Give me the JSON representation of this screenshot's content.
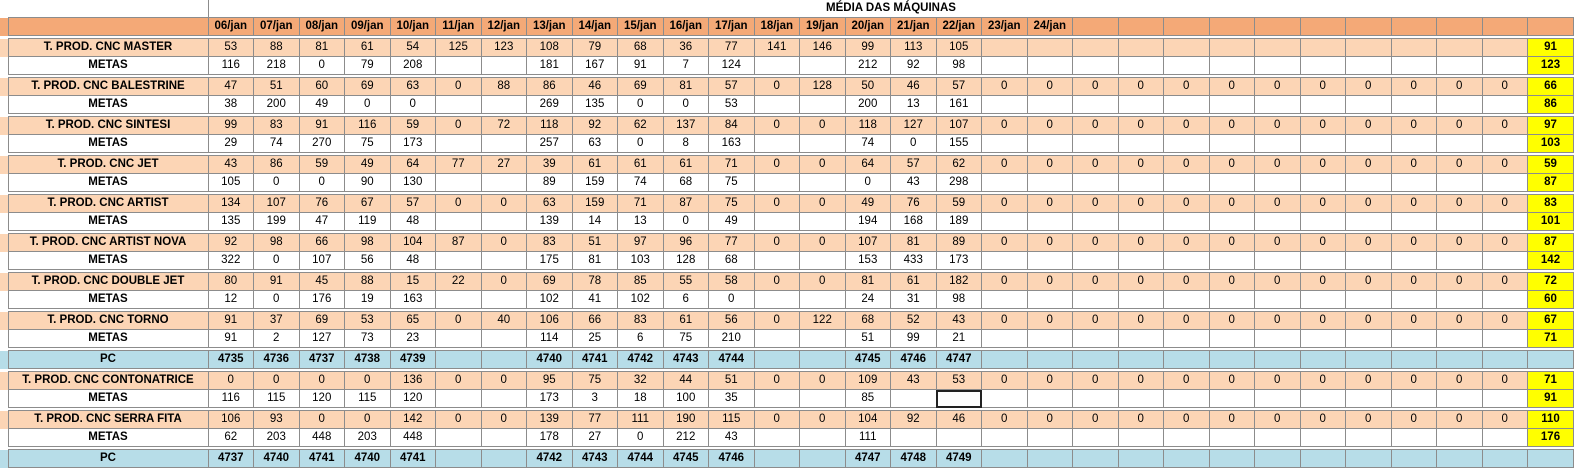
{
  "title": "MÉDIA DAS MÁQUINAS",
  "dates": [
    "06/jan",
    "07/jan",
    "08/jan",
    "09/jan",
    "10/jan",
    "11/jan",
    "12/jan",
    "13/jan",
    "14/jan",
    "15/jan",
    "16/jan",
    "17/jan",
    "18/jan",
    "19/jan",
    "20/jan",
    "21/jan",
    "22/jan",
    "23/jan",
    "24/jan"
  ],
  "blank_columns": 10,
  "groups": [
    {
      "machines": [
        {
          "name": "T. PROD. CNC MASTER",
          "prod": [
            "53",
            "88",
            "81",
            "61",
            "54",
            "125",
            "123",
            "108",
            "79",
            "68",
            "36",
            "77",
            "141",
            "146",
            "99",
            "113",
            "105",
            "",
            "",
            "",
            "",
            "",
            "",
            "",
            "",
            "",
            "",
            "",
            ""
          ],
          "prod_avg": "91",
          "meta_label": "METAS",
          "meta": [
            "116",
            "218",
            "0",
            "79",
            "208",
            "",
            "",
            "181",
            "167",
            "91",
            "7",
            "124",
            "",
            "",
            "212",
            "92",
            "98",
            "",
            "",
            "",
            "",
            "",
            "",
            "",
            "",
            "",
            "",
            "",
            ""
          ],
          "meta_avg": "123"
        },
        {
          "name": "T. PROD. CNC BALESTRINE",
          "prod": [
            "47",
            "51",
            "60",
            "69",
            "63",
            "0",
            "88",
            "86",
            "46",
            "69",
            "81",
            "57",
            "0",
            "128",
            "50",
            "46",
            "57",
            "0",
            "0",
            "0",
            "0",
            "0",
            "0",
            "0",
            "0",
            "0",
            "0",
            "0",
            "0"
          ],
          "prod_avg": "66",
          "meta_label": "METAS",
          "meta": [
            "38",
            "200",
            "49",
            "0",
            "0",
            "",
            "",
            "269",
            "135",
            "0",
            "0",
            "53",
            "",
            "",
            "200",
            "13",
            "161",
            "",
            "",
            "",
            "",
            "",
            "",
            "",
            "",
            "",
            "",
            "",
            ""
          ],
          "meta_avg": "86"
        },
        {
          "name": "T. PROD. CNC SINTESI",
          "prod": [
            "99",
            "83",
            "91",
            "116",
            "59",
            "0",
            "72",
            "118",
            "92",
            "62",
            "137",
            "84",
            "0",
            "0",
            "118",
            "127",
            "107",
            "0",
            "0",
            "0",
            "0",
            "0",
            "0",
            "0",
            "0",
            "0",
            "0",
            "0",
            "0"
          ],
          "prod_avg": "97",
          "meta_label": "METAS",
          "meta": [
            "29",
            "74",
            "270",
            "75",
            "173",
            "",
            "",
            "257",
            "63",
            "0",
            "8",
            "163",
            "",
            "",
            "74",
            "0",
            "155",
            "",
            "",
            "",
            "",
            "",
            "",
            "",
            "",
            "",
            "",
            "",
            ""
          ],
          "meta_avg": "103"
        },
        {
          "name": "T. PROD. CNC JET",
          "prod": [
            "43",
            "86",
            "59",
            "49",
            "64",
            "77",
            "27",
            "39",
            "61",
            "61",
            "61",
            "71",
            "0",
            "0",
            "64",
            "57",
            "62",
            "0",
            "0",
            "0",
            "0",
            "0",
            "0",
            "0",
            "0",
            "0",
            "0",
            "0",
            "0"
          ],
          "prod_avg": "59",
          "meta_label": "METAS",
          "meta": [
            "105",
            "0",
            "0",
            "90",
            "130",
            "",
            "",
            "89",
            "159",
            "74",
            "68",
            "75",
            "",
            "",
            "0",
            "43",
            "298",
            "",
            "",
            "",
            "",
            "",
            "",
            "",
            "",
            "",
            "",
            "",
            ""
          ],
          "meta_avg": "87"
        },
        {
          "name": "T. PROD. CNC ARTIST",
          "prod": [
            "134",
            "107",
            "76",
            "67",
            "57",
            "0",
            "0",
            "63",
            "159",
            "71",
            "87",
            "75",
            "0",
            "0",
            "49",
            "76",
            "59",
            "0",
            "0",
            "0",
            "0",
            "0",
            "0",
            "0",
            "0",
            "0",
            "0",
            "0",
            "0"
          ],
          "prod_avg": "83",
          "meta_label": "METAS",
          "meta": [
            "135",
            "199",
            "47",
            "119",
            "48",
            "",
            "",
            "139",
            "14",
            "13",
            "0",
            "49",
            "",
            "",
            "194",
            "168",
            "189",
            "",
            "",
            "",
            "",
            "",
            "",
            "",
            "",
            "",
            "",
            "",
            ""
          ],
          "meta_avg": "101"
        },
        {
          "name": "T. PROD. CNC ARTIST NOVA",
          "prod": [
            "92",
            "98",
            "66",
            "98",
            "104",
            "87",
            "0",
            "83",
            "51",
            "97",
            "96",
            "77",
            "0",
            "0",
            "107",
            "81",
            "89",
            "0",
            "0",
            "0",
            "0",
            "0",
            "0",
            "0",
            "0",
            "0",
            "0",
            "0",
            "0"
          ],
          "prod_avg": "87",
          "meta_label": "METAS",
          "meta": [
            "322",
            "0",
            "107",
            "56",
            "48",
            "",
            "",
            "175",
            "81",
            "103",
            "128",
            "68",
            "",
            "",
            "153",
            "433",
            "173",
            "",
            "",
            "",
            "",
            "",
            "",
            "",
            "",
            "",
            "",
            "",
            ""
          ],
          "meta_avg": "142"
        },
        {
          "name": "T. PROD. CNC DOUBLE JET",
          "prod": [
            "80",
            "91",
            "45",
            "88",
            "15",
            "22",
            "0",
            "69",
            "78",
            "85",
            "55",
            "58",
            "0",
            "0",
            "81",
            "61",
            "182",
            "0",
            "0",
            "0",
            "0",
            "0",
            "0",
            "0",
            "0",
            "0",
            "0",
            "0",
            "0"
          ],
          "prod_avg": "72",
          "meta_label": "METAS",
          "meta": [
            "12",
            "0",
            "176",
            "19",
            "163",
            "",
            "",
            "102",
            "41",
            "102",
            "6",
            "0",
            "",
            "",
            "24",
            "31",
            "98",
            "",
            "",
            "",
            "",
            "",
            "",
            "",
            "",
            "",
            "",
            "",
            ""
          ],
          "meta_avg": "60"
        },
        {
          "name": "T. PROD. CNC TORNO",
          "prod": [
            "91",
            "37",
            "69",
            "53",
            "65",
            "0",
            "40",
            "106",
            "66",
            "83",
            "61",
            "56",
            "0",
            "122",
            "68",
            "52",
            "43",
            "0",
            "0",
            "0",
            "0",
            "0",
            "0",
            "0",
            "0",
            "0",
            "0",
            "0",
            "0"
          ],
          "prod_avg": "67",
          "meta_label": "METAS",
          "meta": [
            "91",
            "2",
            "127",
            "73",
            "23",
            "",
            "",
            "114",
            "25",
            "6",
            "75",
            "210",
            "",
            "",
            "51",
            "99",
            "21",
            "",
            "",
            "",
            "",
            "",
            "",
            "",
            "",
            "",
            "",
            "",
            ""
          ],
          "meta_avg": "71"
        }
      ],
      "pc": {
        "label": "PC",
        "values": [
          "4735",
          "4736",
          "4737",
          "4738",
          "4739",
          "",
          "",
          "4740",
          "4741",
          "4742",
          "4743",
          "4744",
          "",
          "",
          "4745",
          "4746",
          "4747",
          "",
          "",
          "",
          "",
          "",
          "",
          "",
          "",
          "",
          "",
          "",
          ""
        ]
      }
    },
    {
      "machines": [
        {
          "name": "T. PROD. CNC CONTONATRICE",
          "prod": [
            "0",
            "0",
            "0",
            "0",
            "136",
            "0",
            "0",
            "95",
            "75",
            "32",
            "44",
            "51",
            "0",
            "0",
            "109",
            "43",
            "53",
            "0",
            "0",
            "0",
            "0",
            "0",
            "0",
            "0",
            "0",
            "0",
            "0",
            "0",
            "0"
          ],
          "prod_avg": "71",
          "meta_label": "METAS",
          "meta": [
            "116",
            "115",
            "120",
            "115",
            "120",
            "",
            "",
            "173",
            "3",
            "18",
            "100",
            "35",
            "",
            "",
            "85",
            "",
            "",
            "",
            "",
            "",
            "",
            "",
            "",
            "",
            "",
            "",
            "",
            "",
            ""
          ],
          "meta_avg": "91"
        },
        {
          "name": "T. PROD. CNC SERRA FITA",
          "prod": [
            "106",
            "93",
            "0",
            "0",
            "142",
            "0",
            "0",
            "139",
            "77",
            "111",
            "190",
            "115",
            "0",
            "0",
            "104",
            "92",
            "46",
            "0",
            "0",
            "0",
            "0",
            "0",
            "0",
            "0",
            "0",
            "0",
            "0",
            "0",
            "0"
          ],
          "prod_avg": "110",
          "meta_label": "METAS",
          "meta": [
            "62",
            "203",
            "448",
            "203",
            "448",
            "",
            "",
            "178",
            "27",
            "0",
            "212",
            "43",
            "",
            "",
            "111",
            "",
            "",
            "",
            "",
            "",
            "",
            "",
            "",
            "",
            "",
            "",
            "",
            "",
            ""
          ],
          "meta_avg": "176"
        }
      ],
      "pc": {
        "label": "PC",
        "values": [
          "4737",
          "4740",
          "4741",
          "4740",
          "4741",
          "",
          "",
          "4742",
          "4743",
          "4744",
          "4745",
          "4746",
          "",
          "",
          "4747",
          "4748",
          "4749",
          "",
          "",
          "",
          "",
          "",
          "",
          "",
          "",
          "",
          "",
          "",
          ""
        ]
      }
    }
  ]
}
